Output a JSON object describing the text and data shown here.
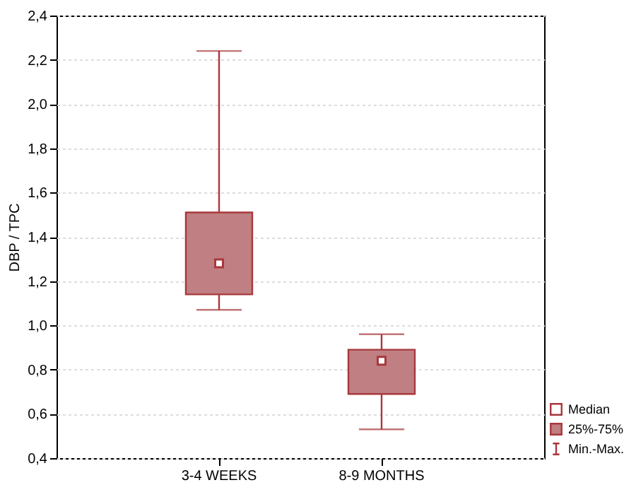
{
  "chart_data": {
    "type": "box",
    "ylabel": "DBP / TPC",
    "categories": [
      "3-4 WEEKS",
      "8-9 MONTHS"
    ],
    "boxes": [
      {
        "low": 1.07,
        "q1": 1.14,
        "median": 1.28,
        "q3": 1.51,
        "high": 2.24
      },
      {
        "low": 0.53,
        "q1": 0.69,
        "median": 0.84,
        "q3": 0.89,
        "high": 0.96
      }
    ],
    "color": "#c07f82",
    "ylim": [
      0.4,
      2.4
    ],
    "yticks": [
      {
        "value": 0.4,
        "label": "0,4"
      },
      {
        "value": 0.6,
        "label": "0,6"
      },
      {
        "value": 0.8,
        "label": "0,8"
      },
      {
        "value": 1.0,
        "label": "1,0"
      },
      {
        "value": 1.2,
        "label": "1,2"
      },
      {
        "value": 1.4,
        "label": "1,4"
      },
      {
        "value": 1.6,
        "label": "1,6"
      },
      {
        "value": 1.8,
        "label": "1,8"
      },
      {
        "value": 2.0,
        "label": "2,0"
      },
      {
        "value": 2.2,
        "label": "2,2"
      },
      {
        "value": 2.4,
        "label": "2,4"
      }
    ],
    "grid": "y",
    "marker": "square",
    "annotations": [
      "Median",
      "25%-75%",
      "Min.-Max."
    ]
  }
}
